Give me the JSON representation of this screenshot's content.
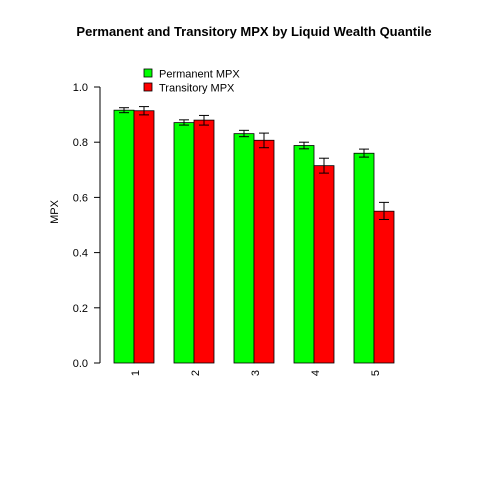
{
  "chart_data": {
    "type": "bar",
    "title": "Permanent and Transitory MPX by  Liquid Wealth Quantile",
    "xlabel": "",
    "ylabel": "MPX",
    "categories": [
      "1",
      "2",
      "3",
      "4",
      "5"
    ],
    "ylim": [
      0,
      1.0
    ],
    "yticks": [
      "0.0",
      "0.2",
      "0.4",
      "0.6",
      "0.8",
      "1.0"
    ],
    "grid": false,
    "legend_position": "top-left",
    "error_bars": true,
    "series": [
      {
        "name": "Permanent MPX",
        "color": "#00ff00",
        "values": [
          0.916,
          0.871,
          0.831,
          0.788,
          0.76
        ],
        "err_low": [
          0.907,
          0.862,
          0.82,
          0.776,
          0.746
        ],
        "err_high": [
          0.925,
          0.881,
          0.843,
          0.8,
          0.775
        ]
      },
      {
        "name": "Transitory MPX",
        "color": "#ff0000",
        "values": [
          0.914,
          0.88,
          0.807,
          0.715,
          0.55
        ],
        "err_low": [
          0.899,
          0.862,
          0.78,
          0.688,
          0.52
        ],
        "err_high": [
          0.929,
          0.897,
          0.833,
          0.742,
          0.582
        ]
      }
    ]
  }
}
